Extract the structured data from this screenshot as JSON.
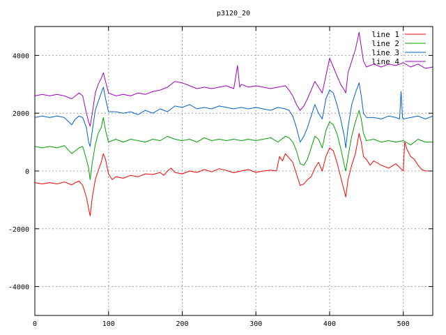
{
  "chart_data": {
    "type": "line",
    "title": "p3120_20",
    "xlabel": "",
    "ylabel": "",
    "xlim": [
      0,
      540
    ],
    "ylim": [
      -5000,
      5000
    ],
    "xticks": [
      0,
      100,
      200,
      300,
      400,
      500
    ],
    "yticks": [
      -4000,
      -2000,
      0,
      2000,
      4000
    ],
    "grid": true,
    "legend_position": "top-right",
    "series": [
      {
        "name": "line 1",
        "color": "#ff0000",
        "points": [
          [
            0,
            -400
          ],
          [
            10,
            -450
          ],
          [
            20,
            -400
          ],
          [
            30,
            -450
          ],
          [
            40,
            -380
          ],
          [
            50,
            -480
          ],
          [
            55,
            -400
          ],
          [
            60,
            -350
          ],
          [
            65,
            -500
          ],
          [
            70,
            -900
          ],
          [
            73,
            -1300
          ],
          [
            75,
            -1550
          ],
          [
            78,
            -900
          ],
          [
            82,
            -300
          ],
          [
            86,
            0
          ],
          [
            90,
            300
          ],
          [
            93,
            600
          ],
          [
            96,
            400
          ],
          [
            100,
            -100
          ],
          [
            105,
            -300
          ],
          [
            110,
            -200
          ],
          [
            120,
            -250
          ],
          [
            130,
            -150
          ],
          [
            140,
            -200
          ],
          [
            150,
            -100
          ],
          [
            160,
            -120
          ],
          [
            170,
            -50
          ],
          [
            175,
            -150
          ],
          [
            180,
            0
          ],
          [
            185,
            100
          ],
          [
            190,
            -50
          ],
          [
            200,
            -100
          ],
          [
            210,
            0
          ],
          [
            220,
            -50
          ],
          [
            230,
            50
          ],
          [
            240,
            -30
          ],
          [
            250,
            80
          ],
          [
            260,
            20
          ],
          [
            270,
            -60
          ],
          [
            280,
            0
          ],
          [
            290,
            50
          ],
          [
            300,
            -50
          ],
          [
            310,
            0
          ],
          [
            320,
            30
          ],
          [
            328,
            0
          ],
          [
            332,
            500
          ],
          [
            336,
            350
          ],
          [
            340,
            600
          ],
          [
            345,
            450
          ],
          [
            350,
            300
          ],
          [
            355,
            -100
          ],
          [
            360,
            -500
          ],
          [
            365,
            -450
          ],
          [
            370,
            -300
          ],
          [
            375,
            -200
          ],
          [
            380,
            100
          ],
          [
            385,
            300
          ],
          [
            390,
            0
          ],
          [
            395,
            500
          ],
          [
            400,
            800
          ],
          [
            405,
            700
          ],
          [
            410,
            300
          ],
          [
            415,
            -200
          ],
          [
            420,
            -700
          ],
          [
            422,
            -900
          ],
          [
            425,
            -300
          ],
          [
            430,
            200
          ],
          [
            435,
            600
          ],
          [
            440,
            1300
          ],
          [
            443,
            1000
          ],
          [
            446,
            500
          ],
          [
            450,
            400
          ],
          [
            455,
            200
          ],
          [
            460,
            350
          ],
          [
            470,
            200
          ],
          [
            480,
            100
          ],
          [
            490,
            250
          ],
          [
            500,
            0
          ],
          [
            502,
            1000
          ],
          [
            505,
            750
          ],
          [
            510,
            500
          ],
          [
            515,
            400
          ],
          [
            520,
            200
          ],
          [
            525,
            50
          ],
          [
            530,
            0
          ],
          [
            540,
            0
          ]
        ]
      },
      {
        "name": "line 2",
        "color": "#00a000",
        "points": [
          [
            0,
            850
          ],
          [
            10,
            800
          ],
          [
            20,
            850
          ],
          [
            30,
            800
          ],
          [
            40,
            880
          ],
          [
            50,
            600
          ],
          [
            55,
            700
          ],
          [
            60,
            800
          ],
          [
            65,
            850
          ],
          [
            70,
            400
          ],
          [
            73,
            100
          ],
          [
            75,
            -300
          ],
          [
            78,
            300
          ],
          [
            82,
            900
          ],
          [
            86,
            1300
          ],
          [
            90,
            1500
          ],
          [
            93,
            1850
          ],
          [
            96,
            1400
          ],
          [
            100,
            1000
          ],
          [
            110,
            1100
          ],
          [
            120,
            1000
          ],
          [
            130,
            1100
          ],
          [
            140,
            1050
          ],
          [
            150,
            1000
          ],
          [
            160,
            1100
          ],
          [
            170,
            1050
          ],
          [
            180,
            1200
          ],
          [
            190,
            1100
          ],
          [
            200,
            1050
          ],
          [
            210,
            1100
          ],
          [
            220,
            1000
          ],
          [
            230,
            1150
          ],
          [
            240,
            1050
          ],
          [
            250,
            1100
          ],
          [
            260,
            1050
          ],
          [
            270,
            1100
          ],
          [
            280,
            1050
          ],
          [
            290,
            1100
          ],
          [
            300,
            1050
          ],
          [
            310,
            1100
          ],
          [
            320,
            1150
          ],
          [
            330,
            1000
          ],
          [
            340,
            1200
          ],
          [
            345,
            1150
          ],
          [
            350,
            1000
          ],
          [
            355,
            700
          ],
          [
            360,
            250
          ],
          [
            365,
            200
          ],
          [
            370,
            400
          ],
          [
            375,
            800
          ],
          [
            380,
            1200
          ],
          [
            385,
            1100
          ],
          [
            390,
            800
          ],
          [
            395,
            1400
          ],
          [
            400,
            1700
          ],
          [
            405,
            1600
          ],
          [
            410,
            1300
          ],
          [
            415,
            800
          ],
          [
            420,
            200
          ],
          [
            422,
            0
          ],
          [
            425,
            500
          ],
          [
            430,
            1200
          ],
          [
            435,
            1700
          ],
          [
            440,
            2100
          ],
          [
            443,
            1800
          ],
          [
            446,
            1300
          ],
          [
            450,
            1050
          ],
          [
            460,
            1100
          ],
          [
            470,
            1000
          ],
          [
            480,
            1050
          ],
          [
            490,
            1000
          ],
          [
            500,
            1050
          ],
          [
            510,
            900
          ],
          [
            520,
            1100
          ],
          [
            530,
            1000
          ],
          [
            540,
            1000
          ]
        ]
      },
      {
        "name": "line 3",
        "color": "#0060d0",
        "points": [
          [
            0,
            1850
          ],
          [
            10,
            1900
          ],
          [
            20,
            1850
          ],
          [
            30,
            1900
          ],
          [
            40,
            1850
          ],
          [
            50,
            1600
          ],
          [
            55,
            1800
          ],
          [
            60,
            1900
          ],
          [
            65,
            1850
          ],
          [
            70,
            1500
          ],
          [
            73,
            1000
          ],
          [
            75,
            850
          ],
          [
            78,
            1400
          ],
          [
            82,
            2100
          ],
          [
            86,
            2400
          ],
          [
            90,
            2700
          ],
          [
            93,
            2900
          ],
          [
            96,
            2500
          ],
          [
            100,
            2050
          ],
          [
            110,
            2050
          ],
          [
            120,
            2000
          ],
          [
            130,
            2050
          ],
          [
            140,
            1950
          ],
          [
            150,
            2100
          ],
          [
            160,
            2000
          ],
          [
            170,
            2150
          ],
          [
            180,
            2050
          ],
          [
            190,
            2250
          ],
          [
            200,
            2200
          ],
          [
            210,
            2300
          ],
          [
            220,
            2150
          ],
          [
            230,
            2200
          ],
          [
            240,
            2150
          ],
          [
            250,
            2250
          ],
          [
            260,
            2200
          ],
          [
            270,
            2150
          ],
          [
            280,
            2200
          ],
          [
            290,
            2150
          ],
          [
            300,
            2200
          ],
          [
            310,
            2150
          ],
          [
            320,
            2100
          ],
          [
            330,
            2200
          ],
          [
            340,
            2150
          ],
          [
            345,
            2100
          ],
          [
            350,
            1900
          ],
          [
            355,
            1500
          ],
          [
            360,
            1000
          ],
          [
            365,
            1200
          ],
          [
            370,
            1500
          ],
          [
            375,
            1900
          ],
          [
            380,
            2300
          ],
          [
            385,
            2000
          ],
          [
            390,
            1800
          ],
          [
            395,
            2500
          ],
          [
            400,
            2800
          ],
          [
            405,
            2700
          ],
          [
            410,
            2300
          ],
          [
            415,
            1800
          ],
          [
            420,
            1200
          ],
          [
            422,
            800
          ],
          [
            425,
            1500
          ],
          [
            430,
            2300
          ],
          [
            435,
            2700
          ],
          [
            440,
            3050
          ],
          [
            443,
            2600
          ],
          [
            446,
            2000
          ],
          [
            450,
            1850
          ],
          [
            460,
            1850
          ],
          [
            470,
            1800
          ],
          [
            480,
            1900
          ],
          [
            490,
            1850
          ],
          [
            495,
            1800
          ],
          [
            497,
            2750
          ],
          [
            499,
            1850
          ],
          [
            500,
            1800
          ],
          [
            510,
            1850
          ],
          [
            520,
            1900
          ],
          [
            530,
            1800
          ],
          [
            540,
            1900
          ]
        ]
      },
      {
        "name": "line 4",
        "color": "#a000c0",
        "points": [
          [
            0,
            2600
          ],
          [
            10,
            2650
          ],
          [
            20,
            2600
          ],
          [
            30,
            2650
          ],
          [
            40,
            2600
          ],
          [
            50,
            2500
          ],
          [
            55,
            2600
          ],
          [
            60,
            2700
          ],
          [
            65,
            2600
          ],
          [
            70,
            2000
          ],
          [
            73,
            1700
          ],
          [
            75,
            1550
          ],
          [
            78,
            2000
          ],
          [
            82,
            2700
          ],
          [
            86,
            3000
          ],
          [
            90,
            3200
          ],
          [
            93,
            3400
          ],
          [
            96,
            3100
          ],
          [
            100,
            2700
          ],
          [
            110,
            2600
          ],
          [
            120,
            2650
          ],
          [
            130,
            2600
          ],
          [
            140,
            2700
          ],
          [
            150,
            2650
          ],
          [
            160,
            2750
          ],
          [
            170,
            2800
          ],
          [
            180,
            2900
          ],
          [
            190,
            3100
          ],
          [
            200,
            3050
          ],
          [
            210,
            2950
          ],
          [
            220,
            2850
          ],
          [
            230,
            2900
          ],
          [
            240,
            2850
          ],
          [
            250,
            2900
          ],
          [
            260,
            2950
          ],
          [
            270,
            2850
          ],
          [
            275,
            3650
          ],
          [
            278,
            2900
          ],
          [
            280,
            3000
          ],
          [
            290,
            2900
          ],
          [
            300,
            2950
          ],
          [
            310,
            2900
          ],
          [
            320,
            2850
          ],
          [
            330,
            2900
          ],
          [
            340,
            2950
          ],
          [
            345,
            2800
          ],
          [
            350,
            2600
          ],
          [
            355,
            2300
          ],
          [
            360,
            2100
          ],
          [
            365,
            2250
          ],
          [
            370,
            2500
          ],
          [
            375,
            2800
          ],
          [
            380,
            3100
          ],
          [
            385,
            2900
          ],
          [
            390,
            2700
          ],
          [
            395,
            3300
          ],
          [
            400,
            3900
          ],
          [
            405,
            3600
          ],
          [
            410,
            3300
          ],
          [
            415,
            3000
          ],
          [
            420,
            2800
          ],
          [
            422,
            2700
          ],
          [
            425,
            3400
          ],
          [
            430,
            3800
          ],
          [
            435,
            4200
          ],
          [
            440,
            4800
          ],
          [
            443,
            4300
          ],
          [
            446,
            3800
          ],
          [
            450,
            3600
          ],
          [
            460,
            3700
          ],
          [
            470,
            3600
          ],
          [
            480,
            3700
          ],
          [
            490,
            3650
          ],
          [
            500,
            3750
          ],
          [
            510,
            3600
          ],
          [
            520,
            3700
          ],
          [
            530,
            3550
          ],
          [
            540,
            3600
          ]
        ]
      }
    ]
  }
}
